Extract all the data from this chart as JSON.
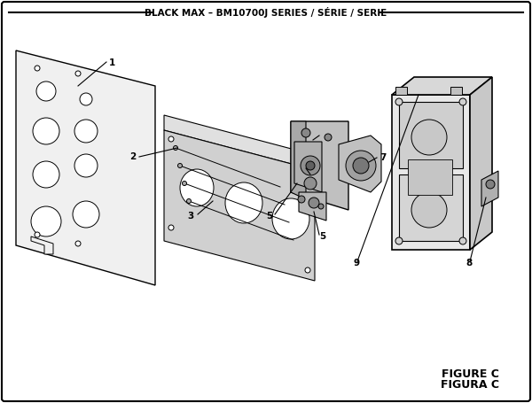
{
  "title": "BLACK MAX – BM10700J SERIES / SÉRIE / SERIE",
  "figure_label": "FIGURE C",
  "figura_label": "FIGURA C",
  "bg_color": "#ffffff",
  "border_color": "#000000",
  "text_color": "#000000"
}
